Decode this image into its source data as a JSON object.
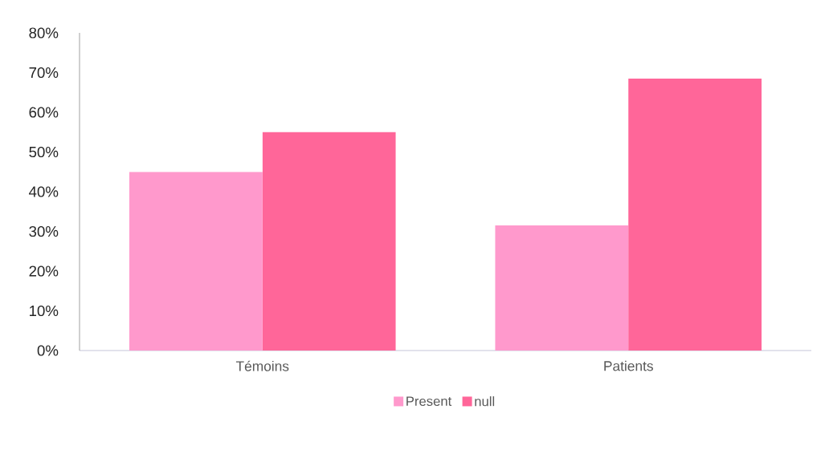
{
  "chart_data": {
    "type": "bar",
    "categories": [
      "Témoins",
      "Patients"
    ],
    "series": [
      {
        "name": "Present",
        "color": "#ff99cc",
        "values": [
          45,
          31.5
        ]
      },
      {
        "name": "null",
        "color": "#ff6699",
        "values": [
          55,
          68.5
        ]
      }
    ],
    "ylim": [
      0,
      80
    ],
    "yticks": [
      {
        "value": 0,
        "label": "0%"
      },
      {
        "value": 10,
        "label": "10%"
      },
      {
        "value": 20,
        "label": "20%"
      },
      {
        "value": 30,
        "label": "30%"
      },
      {
        "value": 40,
        "label": "40%"
      },
      {
        "value": 50,
        "label": "50%"
      },
      {
        "value": 60,
        "label": "60%"
      },
      {
        "value": 70,
        "label": "70%"
      },
      {
        "value": 80,
        "label": "80%"
      }
    ],
    "grid": false,
    "legend": "bottom"
  }
}
